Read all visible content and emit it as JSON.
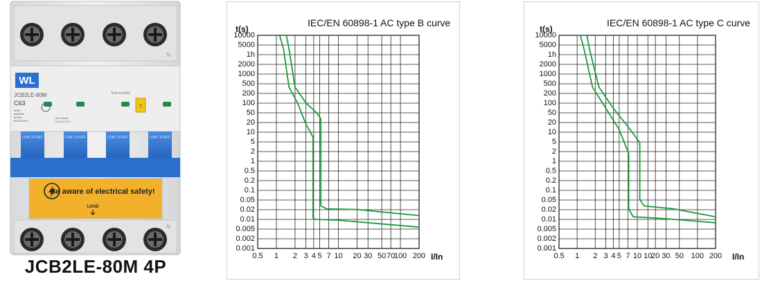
{
  "product": {
    "caption": "JCB2LE-80M 4P",
    "brand_mark": "WL",
    "model_text": "JCB2LE-80M",
    "rating_text": "C63",
    "specs_left": [
      "400V~",
      "50/60Hz",
      "6000A",
      "IEC61009-1"
    ],
    "specs_right": [
      "IΔn=30mA",
      "IC 6 ts ≤ 0.3"
    ],
    "test_label": "Test monthly",
    "test_button": "T",
    "toggle_labels": [
      "I-ON / O-OFF",
      "I-ON / O-OFF",
      "I-ON / O-OFF",
      "I-ON / O-OFF"
    ],
    "warning_text": "Be aware of electrical safety!",
    "load_label": "LOAD",
    "terminal_letter": "N",
    "colors": {
      "body": "#e9e9ea",
      "accent": "#2d6fcf",
      "warning": "#f3b12b",
      "indicator": "#1f8a4c",
      "test_button": "#f0c419"
    }
  },
  "chart_data": [
    {
      "type": "line",
      "title": "IEC/EN 60898-1 AC type B curve",
      "ylabel": "t(s)",
      "xlabel": "I/In",
      "y_ticks": [
        "10000",
        "5000",
        "1h",
        "2000",
        "1000",
        "500",
        "200",
        "100",
        "50",
        "20",
        "10",
        "5",
        "2",
        "1",
        "0.5",
        "0.2",
        "0.1",
        "0.05",
        "0.02",
        "0.01",
        "0.005",
        "0.002",
        "0.001"
      ],
      "x_ticks": [
        "0.5",
        "1",
        "2",
        "3",
        "4",
        "5",
        "7",
        "10",
        "20",
        "30",
        "50",
        "70",
        "100",
        "200"
      ],
      "line_color": "#1a9a3a",
      "series": [
        {
          "points": [
            [
              1.13,
              10000
            ],
            [
              1.3,
              3600
            ],
            [
              1.6,
              200
            ],
            [
              2.2,
              60
            ],
            [
              3,
              12
            ],
            [
              3.9,
              4.5
            ],
            [
              3.9,
              0.01
            ],
            [
              4.3,
              0.009
            ],
            [
              10,
              0.0085
            ],
            [
              200,
              0.005
            ]
          ]
        },
        {
          "points": [
            [
              1.45,
              10000
            ],
            [
              1.6,
              3600
            ],
            [
              2,
              200
            ],
            [
              3,
              60
            ],
            [
              4.5,
              28
            ],
            [
              5.2,
              18
            ],
            [
              5.2,
              0.025
            ],
            [
              6.5,
              0.02
            ],
            [
              20,
              0.019
            ],
            [
              200,
              0.012
            ]
          ]
        }
      ]
    },
    {
      "type": "line",
      "title": "IEC/EN 60898-1 AC type C curve",
      "ylabel": "t(s)",
      "xlabel": "I/In",
      "y_ticks": [
        "10000",
        "5000",
        "1h",
        "2000",
        "1000",
        "500",
        "200",
        "100",
        "50",
        "20",
        "10",
        "5",
        "2",
        "1",
        "0.5",
        "0.2",
        "0.1",
        "0.05",
        "0.02",
        "0.01",
        "0.005",
        "0.002",
        "0.001"
      ],
      "x_ticks": [
        "0.5",
        "1",
        "2",
        "3",
        "4",
        "5",
        "7",
        "10",
        "10",
        "20",
        "30",
        "50",
        "100",
        "200"
      ],
      "line_color": "#1a9a3a",
      "series": [
        {
          "points": [
            [
              1.13,
              10000
            ],
            [
              1.3,
              3600
            ],
            [
              1.8,
              200
            ],
            [
              3,
              40
            ],
            [
              5,
              8
            ],
            [
              7.2,
              1.3
            ],
            [
              7.2,
              0.02
            ],
            [
              8.5,
              0.011
            ],
            [
              30,
              0.0095
            ],
            [
              200,
              0.007
            ]
          ]
        },
        {
          "points": [
            [
              1.45,
              10000
            ],
            [
              1.6,
              3600
            ],
            [
              2.3,
              200
            ],
            [
              4,
              40
            ],
            [
              7,
              10
            ],
            [
              11,
              3
            ],
            [
              11,
              0.04
            ],
            [
              13,
              0.025
            ],
            [
              40,
              0.02
            ],
            [
              200,
              0.011
            ]
          ]
        }
      ]
    }
  ]
}
